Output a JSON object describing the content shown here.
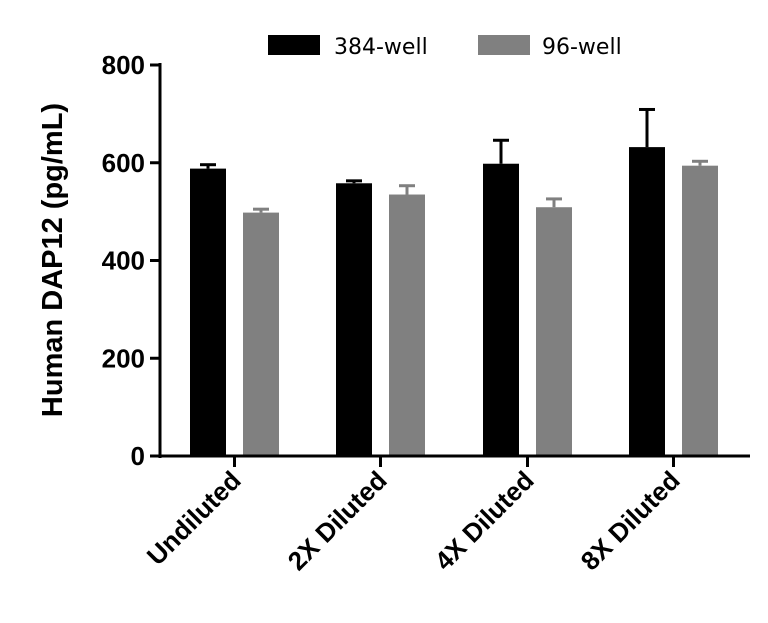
{
  "chart_data": {
    "type": "bar",
    "title": "",
    "xlabel": "",
    "ylabel": "Human DAP12 (pg/mL)",
    "ylim": [
      0,
      800
    ],
    "yticks": [
      0,
      200,
      400,
      600,
      800
    ],
    "categories": [
      "Undiluted",
      "2X Diluted",
      "4X Diluted",
      "8X Diluted"
    ],
    "series": [
      {
        "name": "384-well",
        "color": "#000000",
        "values": [
          588,
          558,
          598,
          632
        ],
        "errors": [
          8,
          5,
          48,
          77
        ]
      },
      {
        "name": "96-well",
        "color": "#808080",
        "values": [
          498,
          535,
          509,
          594
        ],
        "errors": [
          7,
          18,
          17,
          9
        ]
      }
    ],
    "legend_position": "top-center",
    "grid": false
  }
}
